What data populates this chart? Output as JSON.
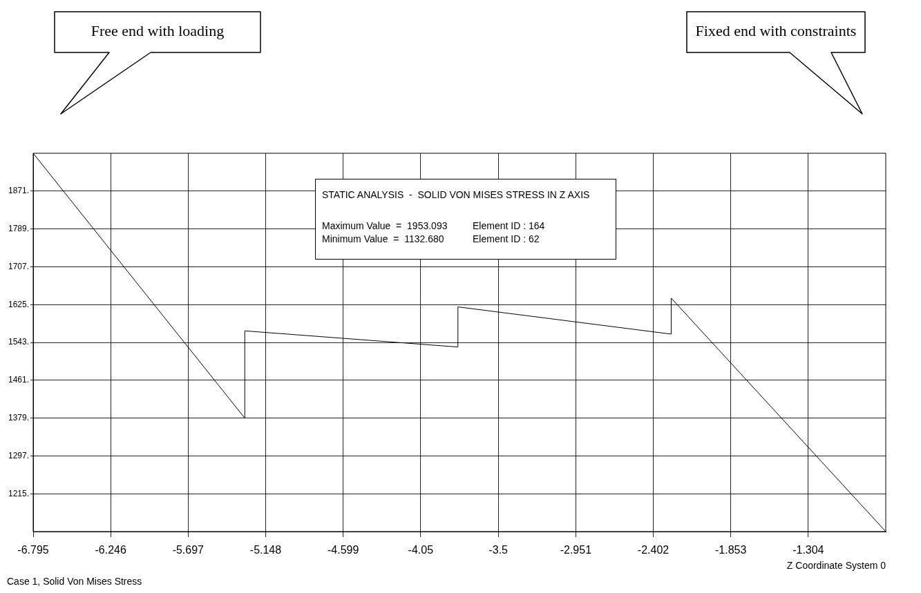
{
  "chart_data": {
    "type": "line",
    "xlabel": "Z Coordinate System 0",
    "x": [
      -6.795,
      -5.296,
      -5.296,
      -3.786,
      -3.786,
      -2.275,
      -2.275,
      -0.755
    ],
    "series": [
      {
        "color": "#000000",
        "values": [
          1953,
          1379,
          1568,
          1533,
          1620,
          1561,
          1639,
          1133
        ]
      }
    ],
    "xlim": [
      -6.795,
      -0.755
    ],
    "xticks": [
      -6.795,
      -6.246,
      -5.697,
      -5.148,
      -4.599,
      -4.05,
      -3.5,
      -2.951,
      -2.402,
      -1.853,
      -1.304
    ],
    "ylim": [
      1133,
      1953
    ],
    "yticks": [
      {
        "value": 1215,
        "label": "1215."
      },
      {
        "value": 1297,
        "label": "1297."
      },
      {
        "value": 1379,
        "label": "1379."
      },
      {
        "value": 1461,
        "label": "1461."
      },
      {
        "value": 1543,
        "label": "1543."
      },
      {
        "value": 1625,
        "label": "1625."
      },
      {
        "value": 1707,
        "label": "1707."
      },
      {
        "value": 1789,
        "label": "1789."
      },
      {
        "value": 1871,
        "label": "1871."
      }
    ],
    "grid": true,
    "legend": false,
    "marker": "none",
    "line_style": "solid",
    "annotations": [
      "Free end with loading",
      "Fixed end with constraints",
      "STATIC ANALYSIS  -  SOLID VON MISES STRESS IN Z AXIS",
      "Maximum Value  =  1953.093",
      "Element ID : 164",
      "Minimum Value  =  1132.680",
      "Element ID : 62",
      "Case 1, Solid Von Mises Stress"
    ]
  }
}
